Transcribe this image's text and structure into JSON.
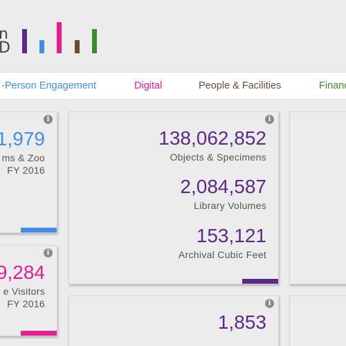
{
  "logo": {
    "line1": "n",
    "line2": "D"
  },
  "brand_colors": {
    "purple": "#5c2a86",
    "blue": "#3f8fe8",
    "magenta": "#e81b94",
    "brown": "#6b4b35",
    "green": "#3c8a2e"
  },
  "tabs": [
    {
      "label": "-Person Engagement",
      "color": "#3f8fe8"
    },
    {
      "label": "Digital",
      "color": "#e81b94"
    },
    {
      "label": "People & Facilities",
      "color": "#6b4b35"
    },
    {
      "label": "Financ",
      "color": "#3c8a2e"
    }
  ],
  "cards": {
    "museums": {
      "value": "1,979",
      "label1": "ms & Zoo",
      "label2": "FY 2016",
      "info": "i"
    },
    "visitors": {
      "value": "9,284",
      "label1": "e Visitors",
      "label2": "FY 2016",
      "info": "i"
    },
    "collections": {
      "info": "i",
      "stats": [
        {
          "value": "138,062,852",
          "label": "Objects & Specimens"
        },
        {
          "value": "2,084,587",
          "label": "Library Volumes"
        },
        {
          "value": "153,121",
          "label": "Archival Cubic Feet"
        }
      ]
    },
    "research": {
      "value": "1,853",
      "info": "i"
    }
  }
}
